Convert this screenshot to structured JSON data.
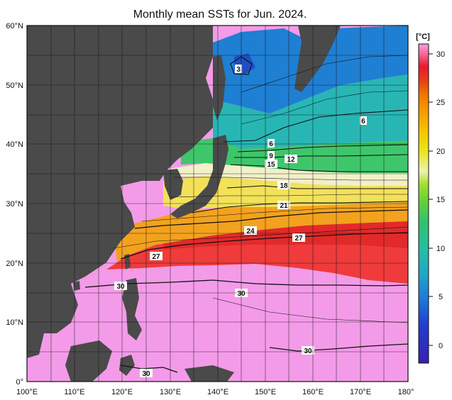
{
  "title": "Monthly mean SSTs for Jun. 2024.",
  "lat_ticks": [
    "0°",
    "10°N",
    "20°N",
    "30°N",
    "40°N",
    "50°N",
    "60°N"
  ],
  "lon_ticks": [
    "100°E",
    "110°E",
    "120°E",
    "130°E",
    "140°E",
    "150°E",
    "160°E",
    "170°E",
    "180°"
  ],
  "colorbar": {
    "unit": "[°C]",
    "ticks": [
      "0",
      "5",
      "10",
      "15",
      "20",
      "25",
      "30"
    ],
    "colors": [
      "#3a1fb0",
      "#1f3fd0",
      "#1f78d8",
      "#22a6c8",
      "#25bfa0",
      "#35c070",
      "#5ccf3c",
      "#a5de2a",
      "#e8e820",
      "#f5c800",
      "#f5a000",
      "#f07800",
      "#e83a1a",
      "#e81a2a",
      "#f56090",
      "#f5a0e0"
    ]
  },
  "contour_labels": [
    {
      "text": "3"
    },
    {
      "text": "6"
    },
    {
      "text": "6"
    },
    {
      "text": "9"
    },
    {
      "text": "15"
    },
    {
      "text": "12"
    },
    {
      "text": "18"
    },
    {
      "text": "21"
    },
    {
      "text": "24"
    },
    {
      "text": "27"
    },
    {
      "text": "27"
    },
    {
      "text": "30"
    },
    {
      "text": "30"
    },
    {
      "text": "30"
    },
    {
      "text": "30"
    }
  ],
  "colors": {
    "land": "#4a4a4a",
    "warm_pink": "#f39be8",
    "red": "#ef3b3b",
    "orange": "#f2a21e",
    "yellow": "#f3e15a",
    "green": "#3fc66b",
    "teal": "#28b6b4",
    "blue": "#1f7fd3"
  }
}
